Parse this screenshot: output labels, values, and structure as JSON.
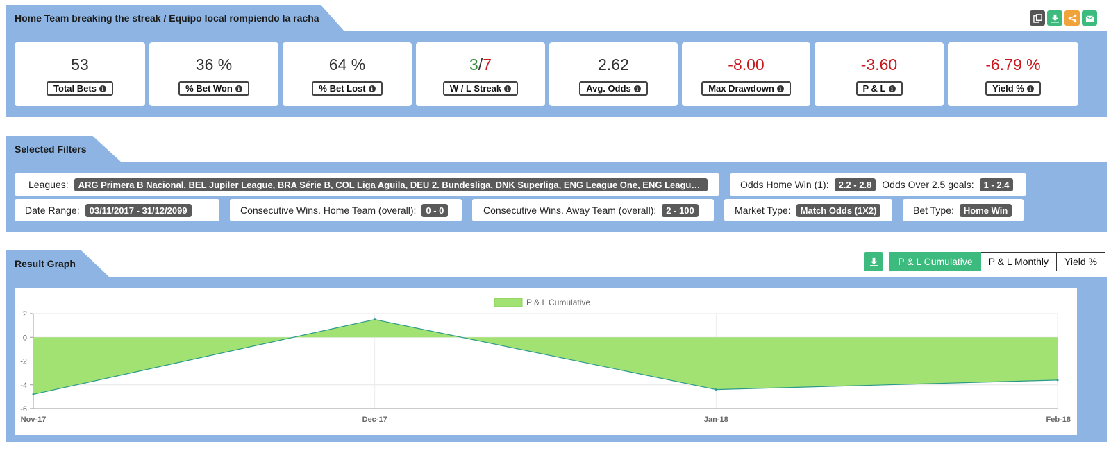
{
  "header": {
    "title": "Home Team breaking the streak / Equipo local rompiendo la racha",
    "icons": [
      {
        "name": "copy-icon",
        "color": "#555555"
      },
      {
        "name": "download-icon",
        "color": "#3dbb7e"
      },
      {
        "name": "share-icon",
        "color": "#f0a23b"
      },
      {
        "name": "envelope-icon",
        "color": "#3dbb7e"
      }
    ]
  },
  "stats": [
    {
      "value": "53",
      "label": "Total Bets"
    },
    {
      "value": "36 %",
      "label": "% Bet Won"
    },
    {
      "value": "64 %",
      "label": "% Bet Lost"
    },
    {
      "value_win": "3",
      "value_sep": "/",
      "value_loss": "7",
      "label": "W / L Streak"
    },
    {
      "value": "2.62",
      "label": "Avg. Odds"
    },
    {
      "value": "-8.00",
      "label": "Max Drawdown"
    },
    {
      "value": "-3.60",
      "label": "P & L"
    },
    {
      "value": "-6.79 %",
      "label": "Yield %"
    }
  ],
  "filters": {
    "title": "Selected Filters",
    "leagues": {
      "label": "Leagues:",
      "value": "ARG Primera B Nacional, BEL Jupiler League, BRA Série B, COL Liga Aguila, DEU 2. Bundesliga, DNK Superliga, ENG League One, ENG League Two ..."
    },
    "odds_home": {
      "label": "Odds Home Win (1):",
      "value": "2.2 - 2.8"
    },
    "odds_over": {
      "label": "Odds Over 2.5 goals:",
      "value": "1 - 2.4"
    },
    "date_range": {
      "label": "Date Range:",
      "value": "03/11/2017 - 31/12/2099"
    },
    "cons_home": {
      "label": "Consecutive Wins. Home Team (overall):",
      "value": "0 - 0"
    },
    "cons_away": {
      "label": "Consecutive Wins. Away Team (overall):",
      "value": "2 - 100"
    },
    "market_type": {
      "label": "Market Type:",
      "value": "Match Odds (1X2)"
    },
    "bet_type": {
      "label": "Bet Type:",
      "value": "Home Win"
    }
  },
  "graph": {
    "title": "Result Graph",
    "toggles": [
      "P & L Cumulative",
      "P & L Monthly",
      "Yield %"
    ],
    "active_toggle": "P & L Cumulative"
  },
  "chart_data": {
    "type": "area",
    "x": [
      "Nov-17",
      "Dec-17",
      "Jan-18",
      "Feb-18"
    ],
    "series": [
      {
        "name": "P & L Cumulative",
        "values": [
          -4.8,
          1.5,
          -4.4,
          -3.6
        ],
        "fill": "#a1e272",
        "stroke": "#2b9a8a"
      }
    ],
    "ylim": [
      -6,
      2
    ],
    "yticks": [
      2,
      0,
      -2,
      -4,
      -6
    ],
    "grid": true,
    "legend": "top-center"
  }
}
